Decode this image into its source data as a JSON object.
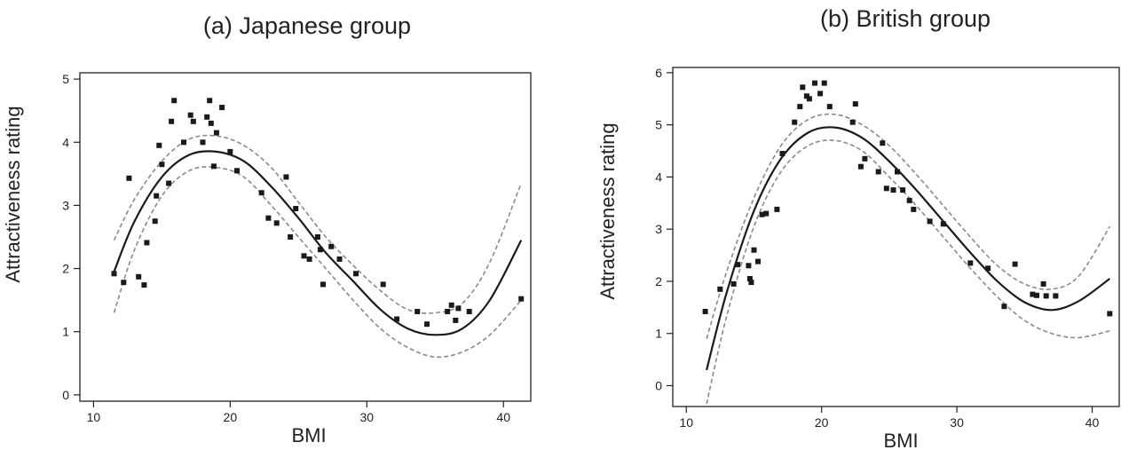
{
  "chart_data": [
    {
      "type": "scatter",
      "title": "(a) Japanese group",
      "xlabel": "BMI",
      "ylabel": "Attractiveness rating",
      "xlim": [
        9,
        42
      ],
      "ylim": [
        -0.1,
        5.1
      ],
      "xticks": [
        10,
        20,
        30,
        40
      ],
      "yticks": [
        0,
        1,
        2,
        3,
        4,
        5
      ],
      "grid": false,
      "series": [
        {
          "kind": "points",
          "x": [
            11.5,
            12.2,
            12.6,
            13.3,
            13.7,
            13.9,
            14.5,
            14.6,
            14.8,
            15.0,
            15.5,
            15.7,
            15.9,
            16.6,
            17.1,
            17.3,
            18.0,
            18.3,
            18.5,
            18.6,
            18.8,
            19.0,
            19.4,
            20.0,
            20.5,
            22.3,
            22.8,
            23.4,
            24.1,
            24.4,
            24.8,
            25.4,
            25.8,
            26.4,
            26.6,
            26.8,
            27.4,
            28.0,
            29.2,
            31.2,
            32.2,
            33.7,
            34.4,
            35.9,
            36.2,
            36.5,
            36.7,
            37.5,
            41.3
          ],
          "y": [
            1.92,
            1.78,
            3.43,
            1.87,
            1.74,
            2.41,
            2.75,
            3.15,
            3.95,
            3.65,
            3.35,
            4.33,
            4.66,
            4.0,
            4.43,
            4.33,
            4.0,
            4.4,
            4.66,
            4.3,
            3.62,
            4.15,
            4.55,
            3.85,
            3.55,
            3.2,
            2.8,
            2.72,
            3.45,
            2.5,
            2.95,
            2.2,
            2.15,
            2.5,
            2.3,
            1.75,
            2.35,
            2.15,
            1.92,
            1.75,
            1.2,
            1.32,
            1.12,
            1.32,
            1.42,
            1.18,
            1.37,
            1.32,
            1.52
          ]
        },
        {
          "kind": "fit",
          "x": [
            11.5,
            13,
            15,
            17,
            19,
            21,
            23,
            25,
            27,
            29,
            31,
            33,
            35,
            37,
            39,
            41.3
          ],
          "y": [
            1.95,
            2.75,
            3.45,
            3.8,
            3.85,
            3.7,
            3.3,
            2.8,
            2.25,
            1.8,
            1.35,
            1.05,
            0.95,
            1.05,
            1.5,
            2.45
          ]
        },
        {
          "kind": "upper",
          "x": [
            11.5,
            13,
            15,
            17,
            19,
            21,
            23,
            25,
            27,
            29,
            31,
            33,
            35,
            37,
            39,
            41.3
          ],
          "y": [
            2.45,
            3.1,
            3.7,
            4.05,
            4.1,
            3.95,
            3.6,
            3.05,
            2.5,
            2.05,
            1.65,
            1.35,
            1.3,
            1.45,
            2.1,
            3.35
          ]
        },
        {
          "kind": "lower",
          "x": [
            11.5,
            13,
            15,
            17,
            19,
            21,
            23,
            25,
            27,
            29,
            31,
            33,
            35,
            37,
            39,
            41.3
          ],
          "y": [
            1.3,
            2.3,
            3.15,
            3.55,
            3.6,
            3.45,
            3.0,
            2.5,
            2.0,
            1.5,
            1.05,
            0.75,
            0.6,
            0.68,
            0.95,
            1.5
          ]
        }
      ]
    },
    {
      "type": "scatter",
      "title": "(b) British group",
      "xlabel": "BMI",
      "ylabel": "Attractiveness rating",
      "xlim": [
        9,
        42
      ],
      "ylim": [
        -0.4,
        6.1
      ],
      "xticks": [
        10,
        20,
        30,
        40
      ],
      "yticks": [
        0,
        1,
        2,
        3,
        4,
        5,
        6
      ],
      "grid": false,
      "series": [
        {
          "kind": "points",
          "x": [
            11.4,
            12.5,
            13.5,
            13.8,
            14.6,
            14.7,
            14.8,
            15.0,
            15.3,
            15.6,
            15.9,
            16.7,
            17.1,
            18.0,
            18.4,
            18.6,
            18.9,
            19.1,
            19.5,
            19.9,
            20.2,
            20.6,
            22.3,
            22.5,
            22.9,
            23.2,
            24.2,
            24.5,
            24.8,
            25.3,
            25.6,
            26.0,
            26.5,
            26.8,
            28.0,
            29.0,
            31.0,
            32.3,
            33.5,
            34.3,
            35.6,
            35.9,
            36.4,
            36.6,
            37.3,
            41.3
          ],
          "y": [
            1.42,
            1.85,
            1.95,
            2.32,
            2.3,
            2.05,
            1.98,
            2.6,
            2.38,
            3.28,
            3.3,
            3.38,
            4.45,
            5.05,
            5.35,
            5.72,
            5.55,
            5.5,
            5.8,
            5.6,
            5.8,
            5.35,
            5.05,
            5.4,
            4.2,
            4.35,
            4.1,
            4.65,
            3.78,
            3.75,
            4.1,
            3.75,
            3.55,
            3.38,
            3.15,
            3.1,
            2.35,
            2.25,
            1.52,
            2.33,
            1.75,
            1.73,
            1.95,
            1.72,
            1.72,
            1.38
          ]
        },
        {
          "kind": "fit",
          "x": [
            11.5,
            13,
            15,
            17,
            19,
            21,
            23,
            25,
            27,
            29,
            31,
            33,
            35,
            37,
            39,
            41.3
          ],
          "y": [
            0.3,
            1.8,
            3.35,
            4.35,
            4.85,
            4.95,
            4.75,
            4.3,
            3.75,
            3.15,
            2.55,
            2.0,
            1.6,
            1.45,
            1.62,
            2.05
          ]
        },
        {
          "kind": "upper",
          "x": [
            11.5,
            13,
            15,
            17,
            19,
            21,
            23,
            25,
            27,
            29,
            31,
            33,
            35,
            37,
            39,
            41.3
          ],
          "y": [
            0.9,
            2.2,
            3.6,
            4.6,
            5.1,
            5.2,
            5.0,
            4.6,
            4.05,
            3.45,
            2.85,
            2.3,
            1.95,
            1.85,
            2.1,
            3.05
          ]
        },
        {
          "kind": "lower",
          "x": [
            11.5,
            13,
            15,
            17,
            19,
            21,
            23,
            25,
            27,
            29,
            31,
            33,
            35,
            37,
            39,
            41.3
          ],
          "y": [
            -0.35,
            1.35,
            3.05,
            4.1,
            4.6,
            4.7,
            4.5,
            4.0,
            3.45,
            2.85,
            2.25,
            1.7,
            1.25,
            1.0,
            0.92,
            1.05
          ]
        }
      ]
    }
  ]
}
